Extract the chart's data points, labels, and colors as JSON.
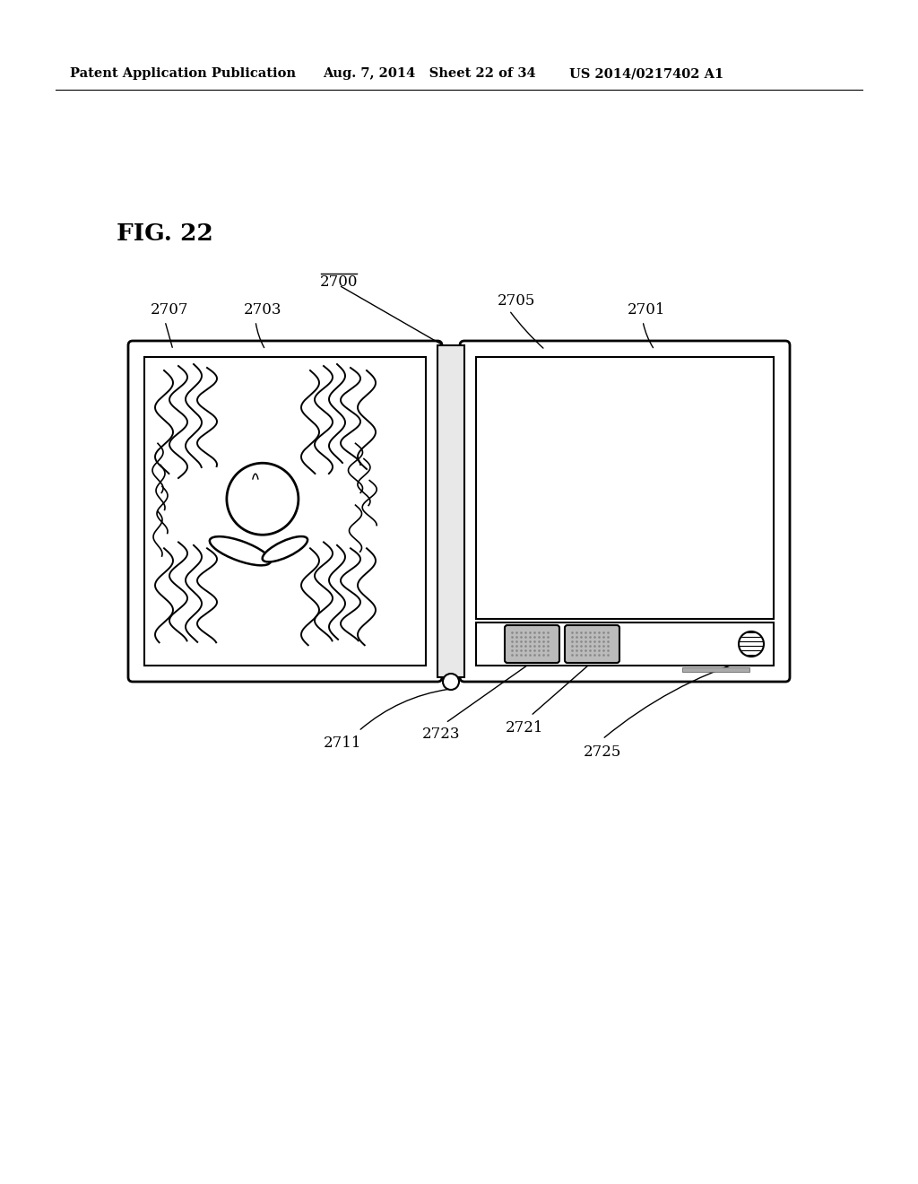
{
  "bg_color": "#ffffff",
  "header_left": "Patent Application Publication",
  "header_mid": "Aug. 7, 2014   Sheet 22 of 34",
  "header_right": "US 2014/0217402 A1",
  "fig_label": "FIG. 22",
  "label_2700": "2700",
  "label_2705": "2705",
  "label_2707": "2707",
  "label_2703": "2703",
  "label_2701": "2701",
  "label_2711": "2711",
  "label_2723": "2723",
  "label_2721": "2721",
  "label_2725": "2725",
  "stipple_color": "#b0b0b0",
  "stipple_density": 6,
  "stipple_size": 1.5
}
